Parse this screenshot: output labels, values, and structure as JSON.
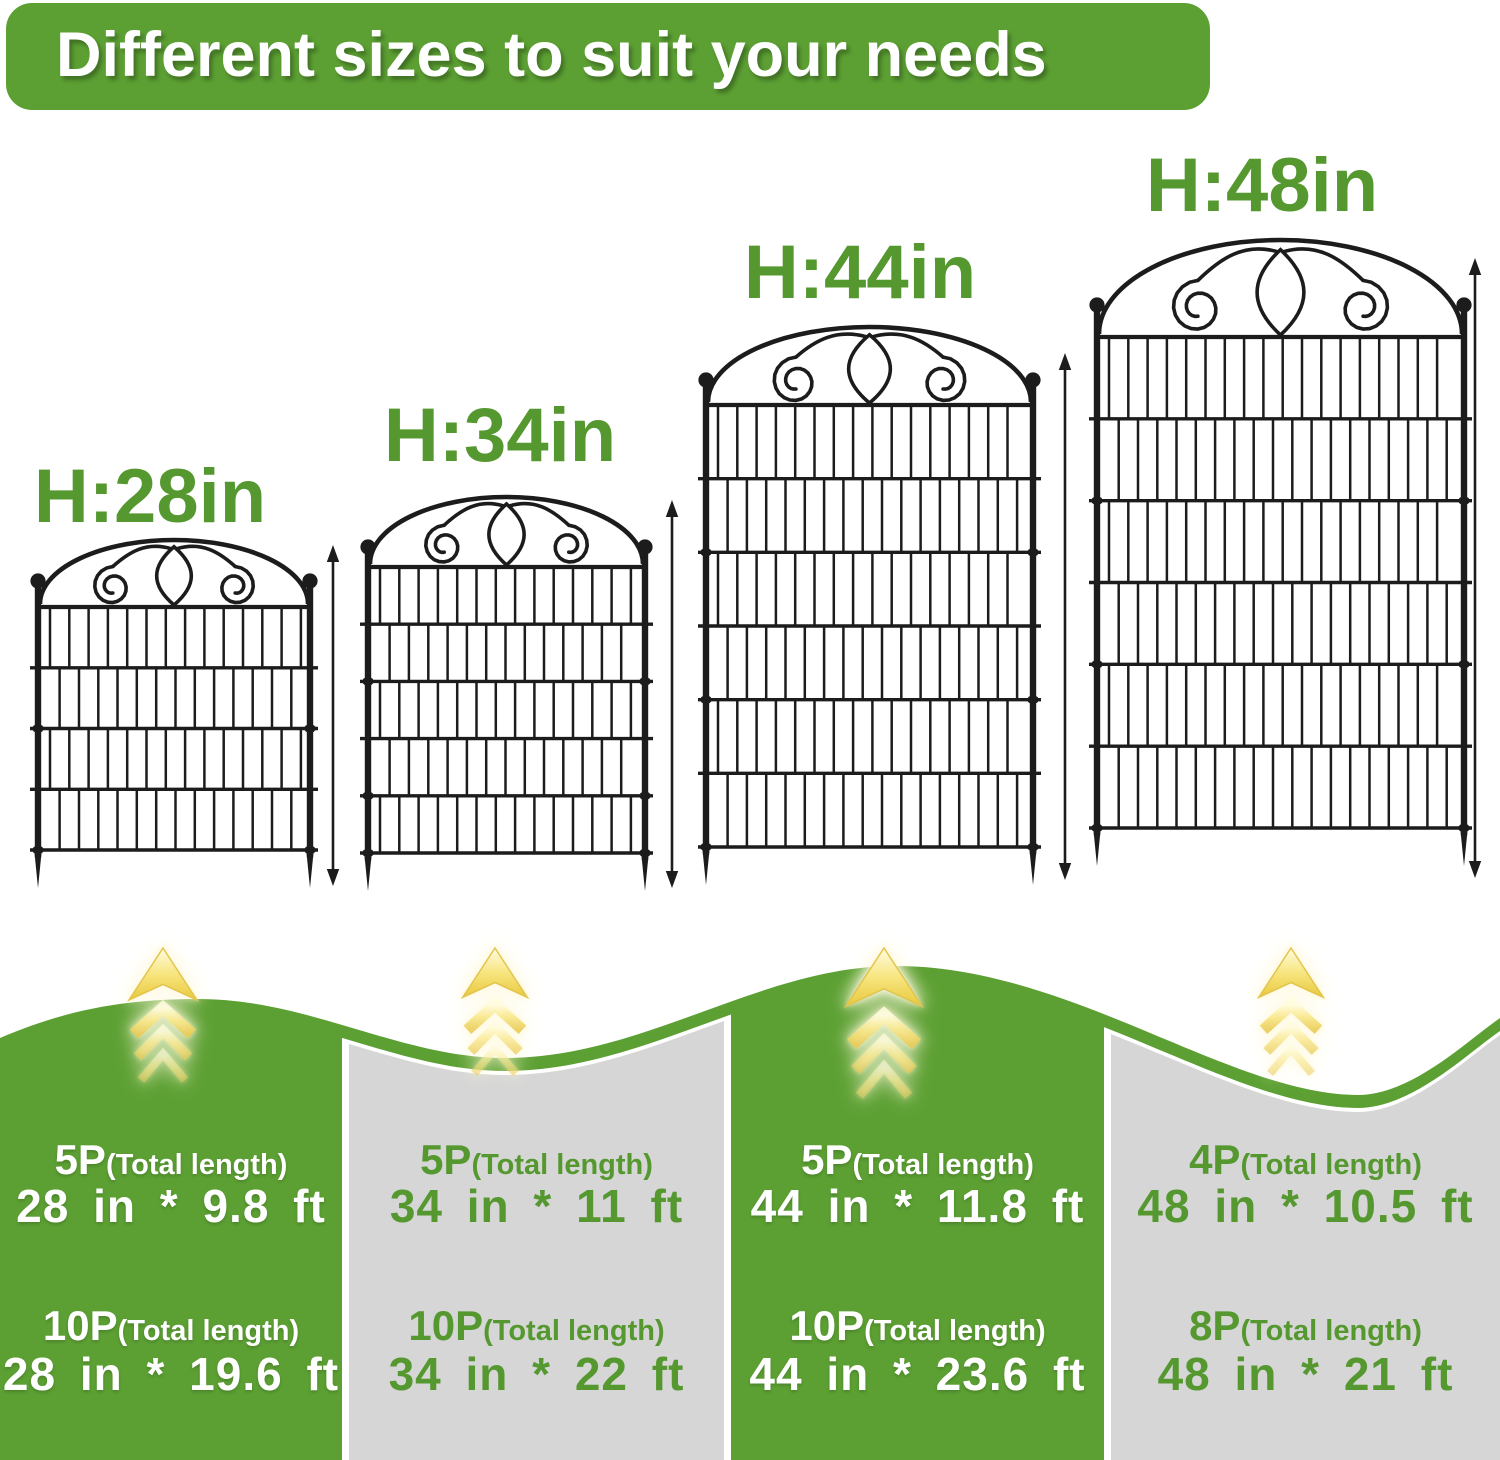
{
  "banner": {
    "title": "Different sizes to suit your needs"
  },
  "colors": {
    "green": "#5ca033",
    "green_text": "#55982f",
    "gray_panel": "#d6d6d6",
    "fence_ink": "#1c1c1c",
    "arrow_ink": "#1c1c1c",
    "chevron_yellow": "#f2d65a",
    "banner_text": "#ffffff"
  },
  "icons": {
    "upgrade_arrow": "triple-chevron-up-icon"
  },
  "fences": [
    {
      "height_label": "H:28in"
    },
    {
      "height_label": "H:34in"
    },
    {
      "height_label": "H:44in"
    },
    {
      "height_label": "H:48in"
    }
  ],
  "packs": [
    {
      "rows": [
        {
          "pack": "5P",
          "note": "(Total length)",
          "size": "28 in * 9.8 ft"
        },
        {
          "pack": "10P",
          "note": "(Total length)",
          "size": "28 in * 19.6 ft"
        }
      ]
    },
    {
      "rows": [
        {
          "pack": "5P",
          "note": "(Total length)",
          "size": "34 in * 11 ft"
        },
        {
          "pack": "10P",
          "note": "(Total length)",
          "size": "34 in * 22 ft"
        }
      ]
    },
    {
      "rows": [
        {
          "pack": "5P",
          "note": "(Total length)",
          "size": "44 in * 11.8 ft"
        },
        {
          "pack": "10P",
          "note": "(Total length)",
          "size": "44 in * 23.6 ft"
        }
      ]
    },
    {
      "rows": [
        {
          "pack": "4P",
          "note": "(Total length)",
          "size": "48 in * 10.5 ft"
        },
        {
          "pack": "8P",
          "note": "(Total length)",
          "size": "48 in * 21 ft"
        }
      ]
    }
  ]
}
